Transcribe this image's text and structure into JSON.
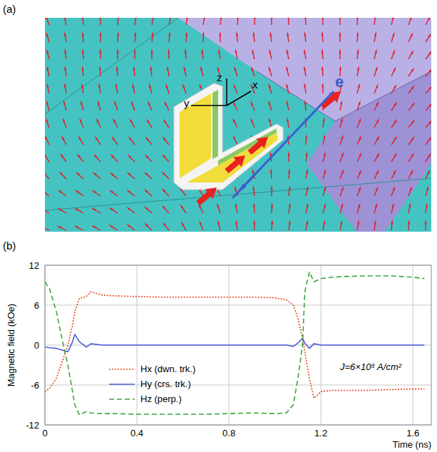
{
  "panel_labels": [
    "(a)",
    "(b)"
  ],
  "diagram": {
    "axis_labels": [
      "z",
      "x",
      "y"
    ],
    "electron_label": "e"
  },
  "chart_data": {
    "type": "line",
    "x_label": "Time (ns)",
    "y_label": "Magnetic field (kOe)",
    "annotations": [
      "J=6×10⁸ A/cm²"
    ],
    "x": [
      0,
      0.02,
      0.05,
      0.08,
      0.1,
      0.12,
      0.13,
      0.15,
      0.18,
      0.2,
      0.25,
      0.3,
      0.4,
      0.5,
      0.6,
      0.7,
      0.8,
      0.9,
      1.0,
      1.05,
      1.08,
      1.1,
      1.12,
      1.13,
      1.15,
      1.17,
      1.2,
      1.25,
      1.3,
      1.4,
      1.5,
      1.6,
      1.65
    ],
    "series": [
      {
        "name": "Hx (dwn. trk.)",
        "color": "#e8401c",
        "line_style": "dotted",
        "values": [
          -7,
          -6.5,
          -5,
          -2,
          0,
          3,
          5,
          7,
          7.3,
          8,
          7.5,
          7.4,
          7.3,
          7.2,
          7.2,
          7.2,
          7.2,
          7.2,
          7.1,
          6.8,
          6,
          4,
          1,
          -1,
          -5,
          -8,
          -7,
          -6.8,
          -6.8,
          -6.8,
          -6.7,
          -6.6,
          -6.6
        ]
      },
      {
        "name": "Hy (crs. trk.)",
        "color": "#4a5ed8",
        "line_style": "solid",
        "values": [
          -0.3,
          -0.4,
          -0.5,
          -0.8,
          -1,
          0.5,
          1.6,
          0.5,
          -0.3,
          0.2,
          0,
          0,
          0,
          0,
          0,
          0,
          0,
          0,
          0,
          0,
          -0.2,
          0.3,
          1,
          0.3,
          -0.5,
          0.2,
          0,
          0,
          0,
          0,
          0,
          0,
          0
        ]
      },
      {
        "name": "Hz (perp.)",
        "color": "#3aa63a",
        "line_style": "dashed",
        "values": [
          9.5,
          8.5,
          5,
          0,
          -3,
          -7,
          -9,
          -10.5,
          -10,
          -10.2,
          -10.3,
          -10.3,
          -10.4,
          -10.4,
          -10.4,
          -10.4,
          -10.3,
          -10.2,
          -10.3,
          -10.2,
          -9,
          -5,
          0,
          8,
          11,
          9.5,
          10,
          10.2,
          10.3,
          10.4,
          10.4,
          10.2,
          10
        ]
      }
    ],
    "xlim": [
      0,
      1.68
    ],
    "ylim": [
      -12,
      12
    ],
    "xticks": [
      0,
      0.4,
      0.8,
      1.2,
      1.6
    ],
    "yticks": [
      -12,
      -6,
      0,
      6,
      12
    ],
    "grid": true,
    "legend": "lower left"
  }
}
